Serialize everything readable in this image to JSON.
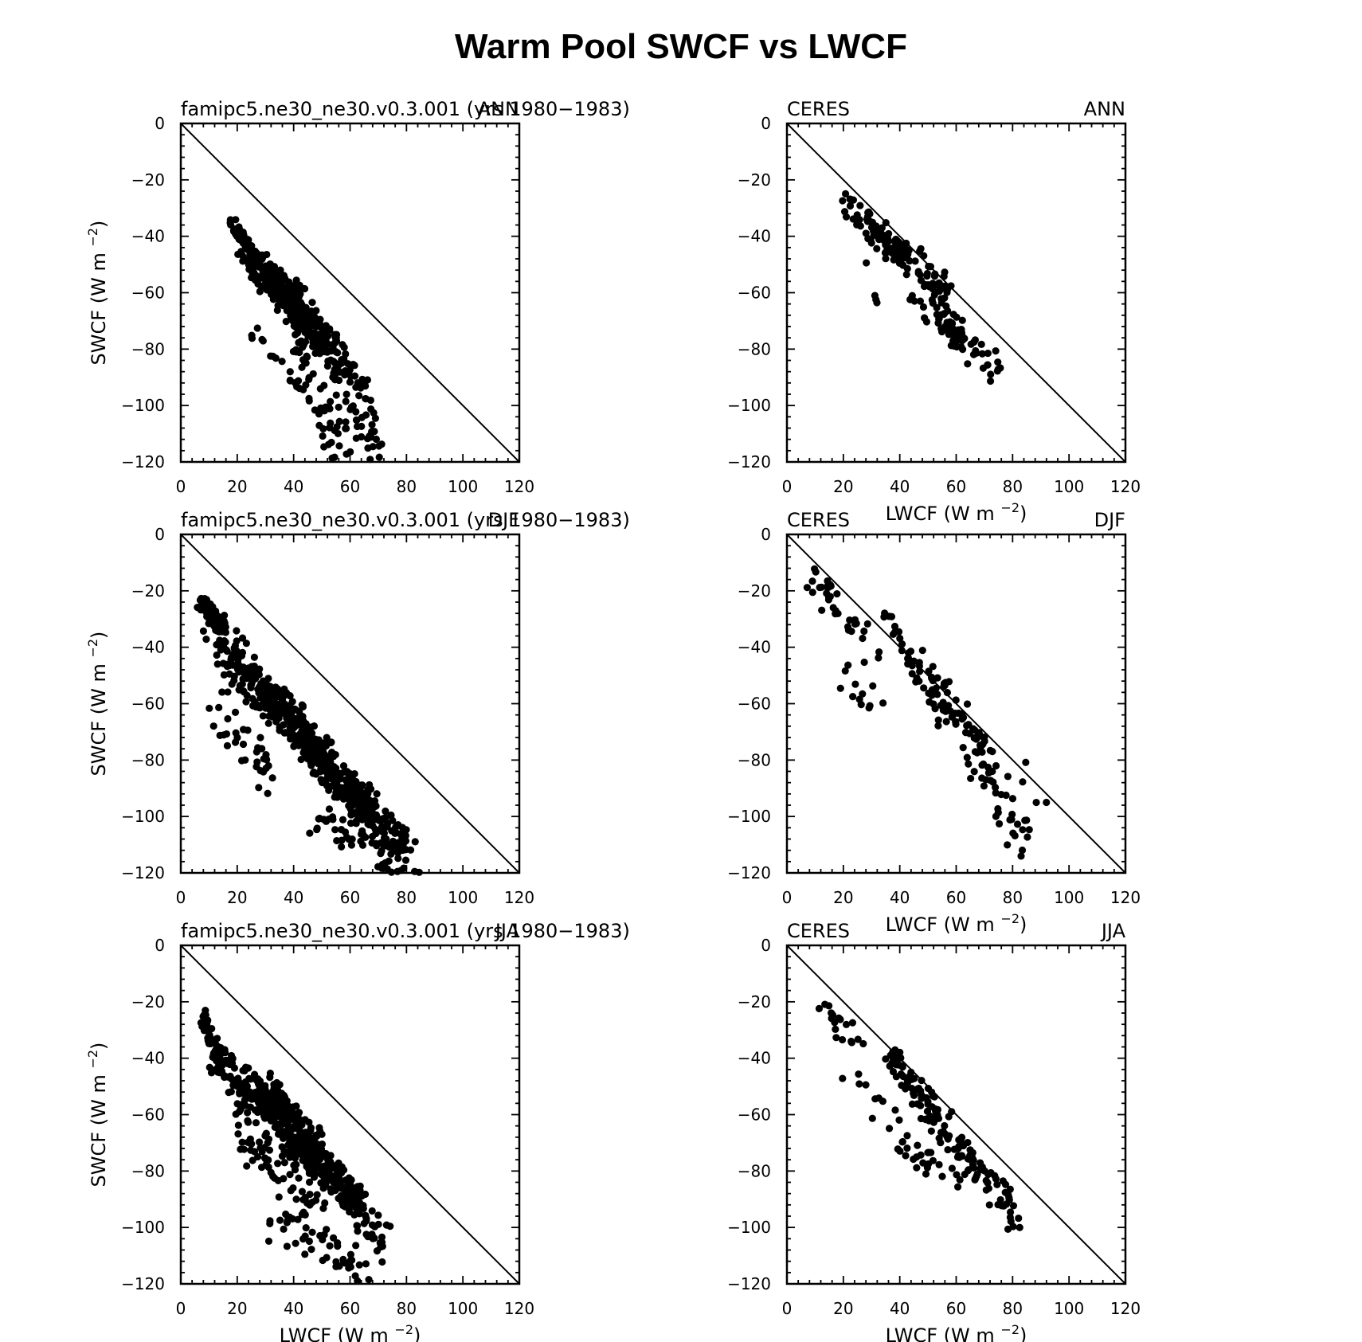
{
  "title": "Warm Pool SWCF vs LWCF",
  "axes": {
    "xlim": [
      0,
      120
    ],
    "ylim": [
      -120,
      0
    ],
    "x_ticks": [
      "0",
      "20",
      "40",
      "60",
      "80",
      "100",
      "120"
    ],
    "y_ticks": [
      "0",
      "−20",
      "−40",
      "−60",
      "−80",
      "−100",
      "−120"
    ],
    "x_label": "LWCF (W m",
    "y_label": "SWCF (W m",
    "unit_exponent": "−2",
    "unit_close": ")"
  },
  "chart_data": [
    {
      "type": "scatter",
      "left_label": "famipc5.ne30_ne30.v0.3.001 (yrs 1980−1983)",
      "right_label": "ANN",
      "xlim": [
        0,
        120
      ],
      "ylim": [
        -120,
        0
      ],
      "reference_line": "y = -x",
      "clusters": [
        {
          "x": [
            18,
            24
          ],
          "y": [
            -35,
            -44
          ],
          "n": 45
        },
        {
          "x": [
            22,
            35
          ],
          "y": [
            -42,
            -62
          ],
          "n": 70
        },
        {
          "x": [
            27,
            45
          ],
          "y": [
            -50,
            -72
          ],
          "n": 140
        },
        {
          "x": [
            33,
            50
          ],
          "y": [
            -55,
            -78
          ],
          "n": 110
        },
        {
          "x": [
            40,
            55
          ],
          "y": [
            -60,
            -82
          ],
          "n": 70
        },
        {
          "x": [
            48,
            68
          ],
          "y": [
            -75,
            -100
          ],
          "n": 60
        },
        {
          "x": [
            40,
            58
          ],
          "y": [
            -80,
            -118
          ],
          "n": 60
        },
        {
          "x": [
            55,
            71
          ],
          "y": [
            -95,
            -118
          ],
          "n": 30
        },
        {
          "x": [
            26,
            42
          ],
          "y": [
            -75,
            -92
          ],
          "n": 10
        }
      ]
    },
    {
      "type": "scatter",
      "left_label": "CERES",
      "right_label": "ANN",
      "xlim": [
        0,
        120
      ],
      "ylim": [
        -120,
        0
      ],
      "reference_line": "y = -x",
      "clusters": [
        {
          "x": [
            22,
            40
          ],
          "y": [
            -28,
            -48
          ],
          "n": 70
        },
        {
          "x": [
            38,
            58
          ],
          "y": [
            -42,
            -62
          ],
          "n": 60
        },
        {
          "x": [
            45,
            65
          ],
          "y": [
            -60,
            -78
          ],
          "n": 45
        },
        {
          "x": [
            55,
            75
          ],
          "y": [
            -70,
            -89
          ],
          "n": 35
        },
        {
          "x": [
            28,
            32
          ],
          "y": [
            -48,
            -61
          ],
          "n": 4
        }
      ]
    },
    {
      "type": "scatter",
      "left_label": "famipc5.ne30_ne30.v0.3.001 (yrs 1980−1983)",
      "right_label": "DJF",
      "xlim": [
        0,
        120
      ],
      "ylim": [
        -120,
        0
      ],
      "reference_line": "y = -x",
      "clusters": [
        {
          "x": [
            6,
            15
          ],
          "y": [
            -23,
            -34
          ],
          "n": 90
        },
        {
          "x": [
            10,
            32
          ],
          "y": [
            -32,
            -62
          ],
          "n": 120
        },
        {
          "x": [
            12,
            35
          ],
          "y": [
            -60,
            -90
          ],
          "n": 35
        },
        {
          "x": [
            30,
            52
          ],
          "y": [
            -55,
            -80
          ],
          "n": 180
        },
        {
          "x": [
            45,
            68
          ],
          "y": [
            -75,
            -98
          ],
          "n": 160
        },
        {
          "x": [
            55,
            80
          ],
          "y": [
            -88,
            -112
          ],
          "n": 120
        },
        {
          "x": [
            48,
            84
          ],
          "y": [
            -100,
            -119
          ],
          "n": 60
        }
      ]
    },
    {
      "type": "scatter",
      "left_label": "CERES",
      "right_label": "DJF",
      "xlim": [
        0,
        120
      ],
      "ylim": [
        -120,
        0
      ],
      "reference_line": "y = -x",
      "clusters": [
        {
          "x": [
            10,
            30
          ],
          "y": [
            -16,
            -40
          ],
          "n": 35
        },
        {
          "x": [
            15,
            35
          ],
          "y": [
            -45,
            -66
          ],
          "n": 12
        },
        {
          "x": [
            33,
            40
          ],
          "y": [
            -25,
            -36
          ],
          "n": 10
        },
        {
          "x": [
            42,
            58
          ],
          "y": [
            -40,
            -65
          ],
          "n": 40
        },
        {
          "x": [
            55,
            72
          ],
          "y": [
            -55,
            -80
          ],
          "n": 45
        },
        {
          "x": [
            65,
            85
          ],
          "y": [
            -75,
            -110
          ],
          "n": 40
        },
        {
          "x": [
            80,
            91
          ],
          "y": [
            -78,
            -100
          ],
          "n": 4
        }
      ]
    },
    {
      "type": "scatter",
      "left_label": "famipc5.ne30_ne30.v0.3.001 (yrs 1980−1983)",
      "right_label": "JJA",
      "xlim": [
        0,
        120
      ],
      "ylim": [
        -120,
        0
      ],
      "reference_line": "y = -x",
      "clusters": [
        {
          "x": [
            8,
            14
          ],
          "y": [
            -26,
            -42
          ],
          "n": 55
        },
        {
          "x": [
            12,
            35
          ],
          "y": [
            -40,
            -62
          ],
          "n": 110
        },
        {
          "x": [
            28,
            50
          ],
          "y": [
            -50,
            -75
          ],
          "n": 190
        },
        {
          "x": [
            40,
            62
          ],
          "y": [
            -70,
            -90
          ],
          "n": 170
        },
        {
          "x": [
            55,
            72
          ],
          "y": [
            -80,
            -106
          ],
          "n": 70
        },
        {
          "x": [
            20,
            48
          ],
          "y": [
            -62,
            -95
          ],
          "n": 70
        },
        {
          "x": [
            30,
            72
          ],
          "y": [
            -95,
            -120
          ],
          "n": 50
        }
      ]
    },
    {
      "type": "scatter",
      "left_label": "CERES",
      "right_label": "JJA",
      "xlim": [
        0,
        120
      ],
      "ylim": [
        -120,
        0
      ],
      "reference_line": "y = -x",
      "clusters": [
        {
          "x": [
            10,
            25
          ],
          "y": [
            -18,
            -35
          ],
          "n": 18
        },
        {
          "x": [
            22,
            40
          ],
          "y": [
            -42,
            -68
          ],
          "n": 12
        },
        {
          "x": [
            35,
            50
          ],
          "y": [
            -37,
            -55
          ],
          "n": 40
        },
        {
          "x": [
            45,
            65
          ],
          "y": [
            -50,
            -78
          ],
          "n": 70
        },
        {
          "x": [
            40,
            60
          ],
          "y": [
            -70,
            -84
          ],
          "n": 25
        },
        {
          "x": [
            60,
            82
          ],
          "y": [
            -70,
            -96
          ],
          "n": 45
        }
      ]
    }
  ]
}
